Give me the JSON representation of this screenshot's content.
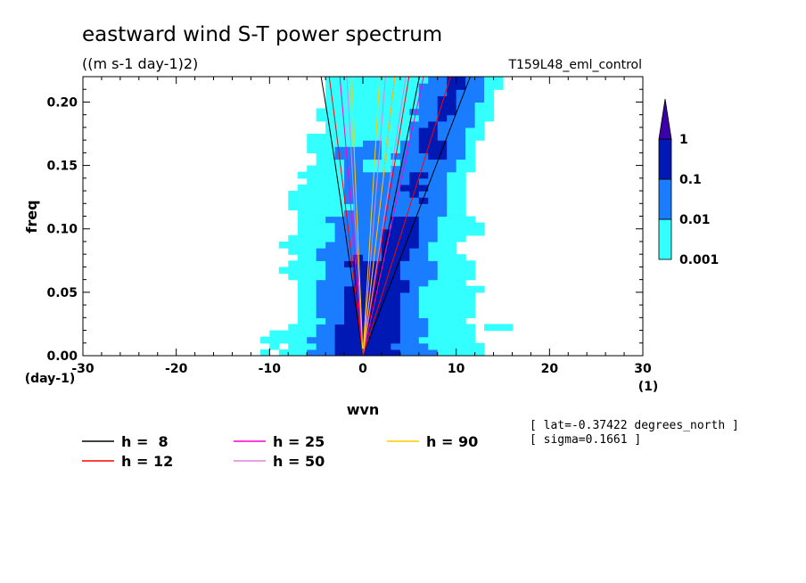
{
  "chart_data": {
    "type": "heatmap",
    "title": "eastward wind S-T power spectrum",
    "subtitle": "((m s-1 day-1)2)",
    "run_label": "T159L48_eml_control",
    "xlabel": "wvn",
    "ylabel": "freq",
    "x_unit_label": "(1)",
    "y_unit_label": "(day-1)",
    "xlim": [
      -30,
      30
    ],
    "ylim": [
      0,
      0.22
    ],
    "x_ticks": [
      -30,
      -20,
      -10,
      0,
      10,
      20,
      30
    ],
    "x_tick_labels": [
      "-30",
      "-20",
      "-10",
      "0",
      "10",
      "20",
      "30"
    ],
    "y_ticks": [
      0,
      0.05,
      0.1,
      0.15,
      0.2
    ],
    "y_tick_labels": [
      "0.00",
      "0.05",
      "0.10",
      "0.15",
      "0.20"
    ],
    "grid": false,
    "colorbar": {
      "levels": [
        0.001,
        0.01,
        0.1,
        1
      ],
      "labels": [
        "0.001",
        "0.01",
        "0.1",
        "1"
      ],
      "colors": [
        "#33ffff",
        "#1a7cff",
        "#0018b4",
        "#3c00a8"
      ],
      "extend": "max"
    },
    "dispersion_curves": [
      {
        "name": "h =  8",
        "h": 8,
        "color": "#000000"
      },
      {
        "name": "h = 12",
        "h": 12,
        "color": "#ff0000"
      },
      {
        "name": "h = 25",
        "h": 25,
        "color": "#ff00cc"
      },
      {
        "name": "h = 50",
        "h": 50,
        "color": "#e080e0"
      },
      {
        "name": "h = 90",
        "h": 90,
        "color": "#ffcc00"
      }
    ],
    "annotations": {
      "lat": "[ lat=-0.37422 degrees_north ]",
      "sigma": "[ sigma=0.1661 ]"
    }
  }
}
